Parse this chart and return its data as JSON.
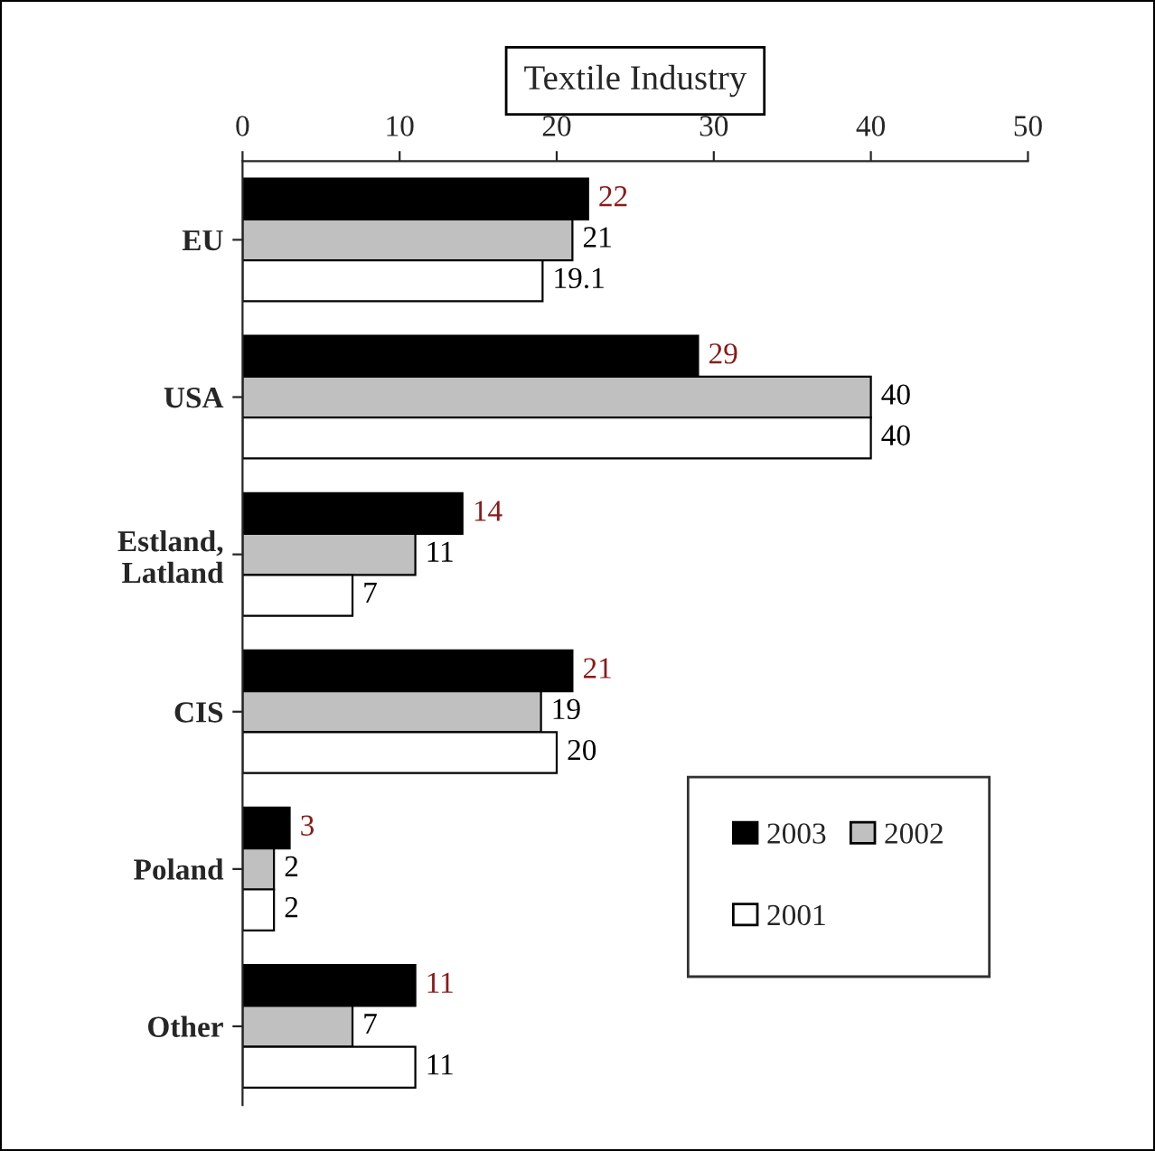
{
  "chart_data": {
    "type": "bar",
    "orientation": "horizontal",
    "title": "Textile Industry",
    "categories": [
      "EU",
      "USA",
      "Estland,\nLatland",
      "CIS",
      "Poland",
      "Other"
    ],
    "series": [
      {
        "name": "2003",
        "color": "#000000",
        "values": [
          22,
          29,
          14,
          21,
          3,
          11
        ]
      },
      {
        "name": "2002",
        "color": "#c0c0c0",
        "values": [
          21,
          40,
          11,
          19,
          2,
          7
        ]
      },
      {
        "name": "2001",
        "color": "#ffffff",
        "values": [
          19.1,
          40,
          7,
          20,
          2,
          11
        ]
      }
    ],
    "xlim": [
      0,
      50
    ],
    "xticks": [
      0,
      10,
      20,
      30,
      40,
      50
    ],
    "data_labels": true,
    "legend": "bottom right",
    "grid": false
  }
}
